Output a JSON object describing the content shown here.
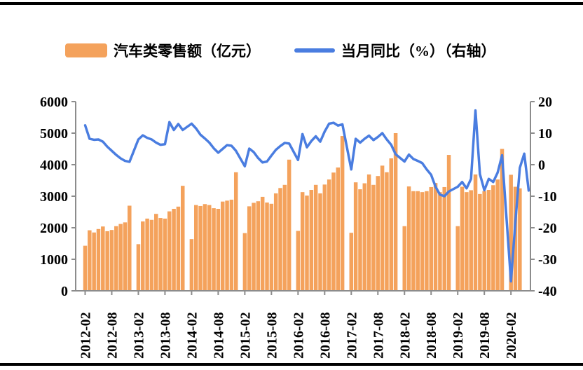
{
  "legend": {
    "items": [
      {
        "label": "汽车类零售额（亿元）",
        "swatch": "bar",
        "color": "#F4A25C"
      },
      {
        "label": "当月同比（%）（右轴）",
        "swatch": "line",
        "color": "#4A7DE0"
      }
    ],
    "position": "top"
  },
  "chart_data": {
    "type": "bar",
    "subtype": "bar+line dual axis",
    "title": "",
    "xlabel": "",
    "ylabel_left": "汽车类零售额（亿元）",
    "ylabel_right": "当月同比（%）",
    "grid": false,
    "left_axis": {
      "min": 0,
      "max": 6000,
      "step": 1000,
      "ticks": [
        "0",
        "1000",
        "2000",
        "3000",
        "4000",
        "5000",
        "6000"
      ]
    },
    "right_axis": {
      "min": -40,
      "max": 20,
      "step": 10,
      "ticks": [
        "-40",
        "-30",
        "-20",
        "-10",
        "0",
        "10",
        "20"
      ]
    },
    "x_tick_labels": [
      "2012-02",
      "2012-08",
      "2013-02",
      "2013-08",
      "2014-02",
      "2014-08",
      "2015-02",
      "2015-08",
      "2016-02",
      "2016-08",
      "2017-02",
      "2017-08",
      "2018-02",
      "2018-08",
      "2019-02",
      "2019-08",
      "2020-02"
    ],
    "colors": {
      "bar": "#F4A25C",
      "line": "#4A7DE0",
      "axis": "#8C8C8C",
      "text": "#000000"
    },
    "note": "monthly data, January slots empty (no data published); rows are [month, retail_sales_yi_yuan, yoy_pct]",
    "series_names": [
      "汽车类零售额（亿元）",
      "当月同比（%）（右轴）"
    ],
    "rows": [
      [
        "2012-02",
        1430,
        12.5
      ],
      [
        "2012-03",
        1920,
        8.2
      ],
      [
        "2012-04",
        1850,
        7.9
      ],
      [
        "2012-05",
        1960,
        8.0
      ],
      [
        "2012-06",
        2040,
        7.3
      ],
      [
        "2012-07",
        1890,
        5.7
      ],
      [
        "2012-08",
        1930,
        4.4
      ],
      [
        "2012-09",
        2050,
        3.1
      ],
      [
        "2012-10",
        2120,
        2.0
      ],
      [
        "2012-11",
        2170,
        1.2
      ],
      [
        "2012-12",
        2700,
        0.9
      ],
      [
        "2013-01",
        null,
        null
      ],
      [
        "2013-02",
        1480,
        8.0
      ],
      [
        "2013-03",
        2200,
        9.3
      ],
      [
        "2013-04",
        2290,
        8.5
      ],
      [
        "2013-05",
        2250,
        8.0
      ],
      [
        "2013-06",
        2440,
        7.0
      ],
      [
        "2013-07",
        2310,
        6.3
      ],
      [
        "2013-08",
        2290,
        6.5
      ],
      [
        "2013-09",
        2520,
        13.5
      ],
      [
        "2013-10",
        2600,
        11.0
      ],
      [
        "2013-11",
        2670,
        12.9
      ],
      [
        "2013-12",
        3330,
        11.0
      ],
      [
        "2014-01",
        null,
        null
      ],
      [
        "2014-02",
        1640,
        13.0
      ],
      [
        "2014-03",
        2720,
        11.5
      ],
      [
        "2014-04",
        2690,
        9.5
      ],
      [
        "2014-05",
        2750,
        8.3
      ],
      [
        "2014-06",
        2720,
        7.0
      ],
      [
        "2014-07",
        2620,
        5.2
      ],
      [
        "2014-08",
        2600,
        3.8
      ],
      [
        "2014-09",
        2830,
        5.0
      ],
      [
        "2014-10",
        2860,
        6.2
      ],
      [
        "2014-11",
        2890,
        6.0
      ],
      [
        "2014-12",
        3760,
        4.4
      ],
      [
        "2015-01",
        null,
        null
      ],
      [
        "2015-02",
        1830,
        -0.5
      ],
      [
        "2015-03",
        2680,
        5.1
      ],
      [
        "2015-04",
        2790,
        4.0
      ],
      [
        "2015-05",
        2840,
        2.1
      ],
      [
        "2015-06",
        2980,
        0.7
      ],
      [
        "2015-07",
        2800,
        1.0
      ],
      [
        "2015-08",
        2760,
        2.9
      ],
      [
        "2015-09",
        3090,
        4.7
      ],
      [
        "2015-10",
        3260,
        5.9
      ],
      [
        "2015-11",
        3360,
        6.9
      ],
      [
        "2015-12",
        4160,
        6.7
      ],
      [
        "2016-01",
        null,
        null
      ],
      [
        "2016-02",
        1900,
        1.5
      ],
      [
        "2016-03",
        3130,
        9.7
      ],
      [
        "2016-04",
        3020,
        5.5
      ],
      [
        "2016-05",
        3200,
        7.5
      ],
      [
        "2016-06",
        3360,
        9.0
      ],
      [
        "2016-07",
        3090,
        7.3
      ],
      [
        "2016-08",
        3370,
        10.5
      ],
      [
        "2016-09",
        3530,
        13.0
      ],
      [
        "2016-10",
        3750,
        13.3
      ],
      [
        "2016-11",
        3910,
        12.4
      ],
      [
        "2016-12",
        4910,
        12.8
      ],
      [
        "2017-01",
        null,
        null
      ],
      [
        "2017-02",
        1840,
        -1.5
      ],
      [
        "2017-03",
        3440,
        8.2
      ],
      [
        "2017-04",
        3220,
        7.0
      ],
      [
        "2017-05",
        3410,
        8.2
      ],
      [
        "2017-06",
        3690,
        9.2
      ],
      [
        "2017-07",
        3360,
        7.8
      ],
      [
        "2017-08",
        3640,
        8.8
      ],
      [
        "2017-09",
        3970,
        10.0
      ],
      [
        "2017-10",
        3760,
        8.0
      ],
      [
        "2017-11",
        4200,
        6.3
      ],
      [
        "2017-12",
        5000,
        3.3
      ],
      [
        "2018-01",
        null,
        null
      ],
      [
        "2018-02",
        2050,
        1.0
      ],
      [
        "2018-03",
        3310,
        3.2
      ],
      [
        "2018-04",
        3160,
        1.8
      ],
      [
        "2018-05",
        3160,
        1.2
      ],
      [
        "2018-06",
        3130,
        0.5
      ],
      [
        "2018-07",
        3160,
        -1.5
      ],
      [
        "2018-08",
        3290,
        -3.2
      ],
      [
        "2018-09",
        3420,
        -7.0
      ],
      [
        "2018-10",
        3130,
        -9.5
      ],
      [
        "2018-11",
        3290,
        -10.0
      ],
      [
        "2018-12",
        4310,
        -8.5
      ],
      [
        "2019-01",
        null,
        null
      ],
      [
        "2019-02",
        2050,
        -7.0
      ],
      [
        "2019-03",
        3300,
        -5.5
      ],
      [
        "2019-04",
        3130,
        -7.5
      ],
      [
        "2019-05",
        3190,
        -4.5
      ],
      [
        "2019-06",
        3690,
        17.2
      ],
      [
        "2019-07",
        3070,
        -3.0
      ],
      [
        "2019-08",
        3160,
        -8.1
      ],
      [
        "2019-09",
        3200,
        -4.5
      ],
      [
        "2019-10",
        3350,
        -5.5
      ],
      [
        "2019-11",
        3530,
        -2.5
      ],
      [
        "2019-12",
        4500,
        3.0
      ],
      [
        "2020-01",
        null,
        null
      ],
      [
        "2020-02",
        3680,
        -37.0
      ],
      [
        "2020-03",
        3300,
        -18.1
      ],
      [
        "2020-04",
        3250,
        -1.0
      ],
      [
        "2020-05",
        null,
        3.5
      ],
      [
        "2020-06",
        null,
        -8.2
      ]
    ]
  }
}
